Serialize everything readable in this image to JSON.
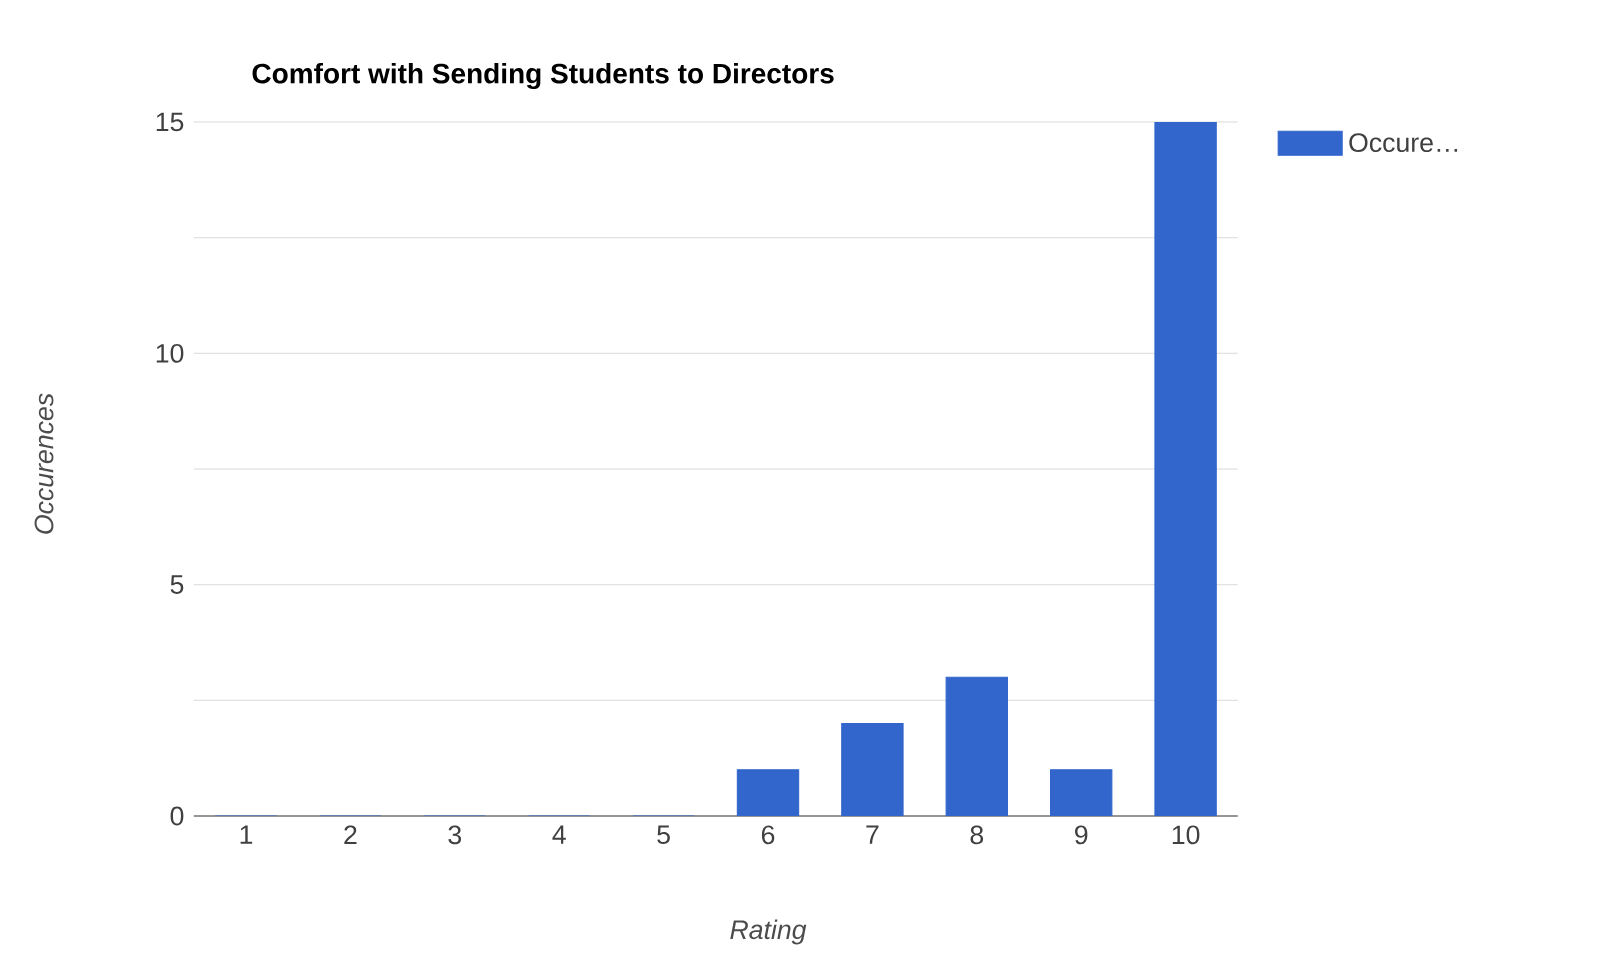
{
  "chart_data": {
    "type": "bar",
    "title": "Comfort with Sending Students to Directors",
    "xlabel": "Rating",
    "ylabel": "Occurences",
    "categories": [
      "1",
      "2",
      "3",
      "4",
      "5",
      "6",
      "7",
      "8",
      "9",
      "10"
    ],
    "series": [
      {
        "name": "Occure…",
        "color": "#3366cc",
        "values": [
          0,
          0,
          0,
          0,
          0,
          1,
          2,
          3,
          1,
          15
        ]
      }
    ],
    "ylim": [
      0,
      15
    ],
    "yticks": [
      0,
      {
        "value": 2.5,
        "label": null
      },
      5,
      {
        "value": 7.5,
        "label": null
      },
      10,
      {
        "value": 12.5,
        "label": null
      },
      15
    ],
    "grid": "y",
    "legend": "top right"
  }
}
